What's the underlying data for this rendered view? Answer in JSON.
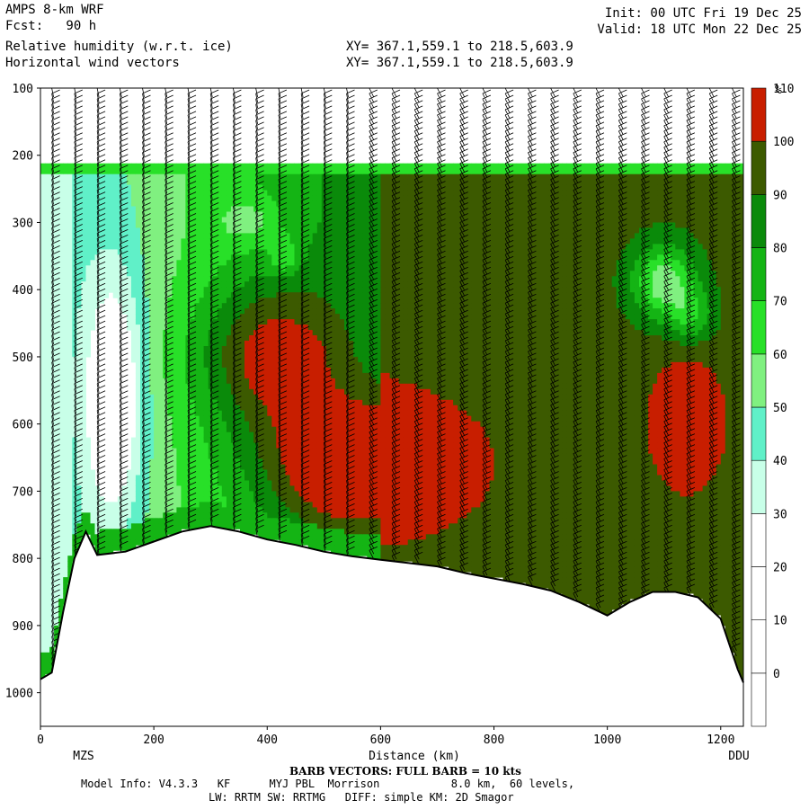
{
  "header": {
    "model": "AMPS 8-km WRF",
    "forecast": "Fcst:   90 h",
    "field1": "Relative humidity (w.r.t. ice)",
    "field2": "Horizontal wind vectors",
    "xy1": "XY= 367.1,559.1 to 218.5,603.9",
    "xy2": "XY= 367.1,559.1 to 218.5,603.9",
    "init": "Init: 00 UTC Fri 19 Dec 25",
    "valid": "Valid: 18 UTC Mon 22 Dec 25"
  },
  "footer": {
    "barb_note": "BARB VECTORS: FULL BARB = 10 kts",
    "line1": "Model Info: V4.3.3   KF      MYJ PBL  Morrison           8.0 km,  60 levels,",
    "line2": "LW: RRTM SW: RRTMG   DIFF: simple KM: 2D Smagor"
  },
  "chart_data": {
    "type": "heatmap",
    "title": "Relative humidity (w.r.t. ice)",
    "xlabel": "Distance (km)",
    "ylabel": "",
    "xlim": [
      0,
      1240
    ],
    "ylim": [
      1050,
      100
    ],
    "x_ticks": [
      0,
      200,
      400,
      600,
      800,
      1000,
      1200
    ],
    "y_ticks": [
      100,
      200,
      300,
      400,
      500,
      600,
      700,
      800,
      900,
      1000
    ],
    "endpoints": {
      "left": "MZS",
      "right": "DDU"
    },
    "colorbar": {
      "unit": "%",
      "levels": [
        0,
        10,
        20,
        30,
        40,
        50,
        60,
        70,
        80,
        90,
        100,
        110
      ],
      "colors": [
        "#ffffff",
        "#ffffff",
        "#ffffff",
        "#ffffff",
        "#c8ffe8",
        "#60f0c8",
        "#80f080",
        "#28e028",
        "#14b414",
        "#0a8a0a",
        "#3c5a00",
        "#c81e00"
      ]
    },
    "terrain_pressure": [
      [
        0,
        980
      ],
      [
        20,
        970
      ],
      [
        40,
        880
      ],
      [
        60,
        800
      ],
      [
        80,
        760
      ],
      [
        100,
        795
      ],
      [
        150,
        790
      ],
      [
        200,
        775
      ],
      [
        250,
        760
      ],
      [
        300,
        752
      ],
      [
        350,
        760
      ],
      [
        400,
        772
      ],
      [
        450,
        780
      ],
      [
        500,
        790
      ],
      [
        550,
        797
      ],
      [
        600,
        802
      ],
      [
        650,
        807
      ],
      [
        700,
        812
      ],
      [
        750,
        822
      ],
      [
        800,
        830
      ],
      [
        850,
        838
      ],
      [
        900,
        848
      ],
      [
        950,
        865
      ],
      [
        1000,
        885
      ],
      [
        1040,
        865
      ],
      [
        1080,
        850
      ],
      [
        1120,
        850
      ],
      [
        1160,
        858
      ],
      [
        1200,
        890
      ],
      [
        1230,
        965
      ],
      [
        1240,
        985
      ]
    ],
    "barb_stations_km": [
      20,
      60,
      100,
      140,
      180,
      220,
      260,
      300,
      340,
      380,
      420,
      460,
      500,
      540,
      580,
      620,
      660,
      700,
      740,
      780,
      820,
      860,
      900,
      940,
      980,
      1020,
      1060,
      1100,
      1140,
      1180,
      1220
    ]
  }
}
